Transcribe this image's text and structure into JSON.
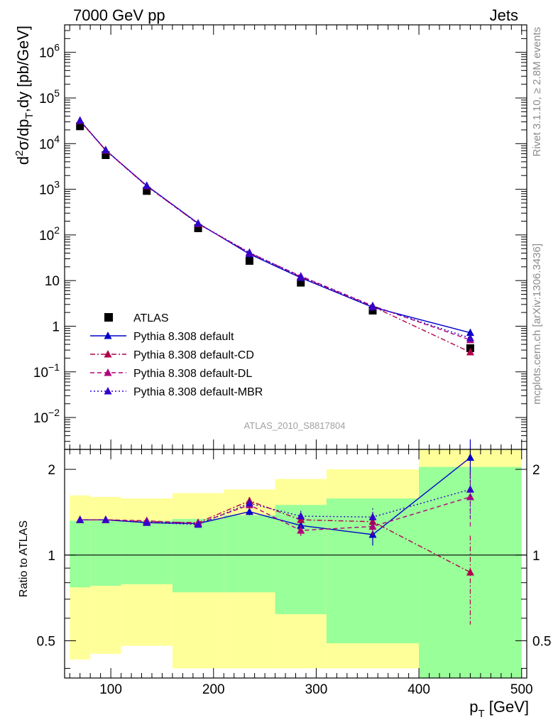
{
  "header": {
    "left": "7000 GeV pp",
    "right": "Jets"
  },
  "side": {
    "rivet": "Rivet 3.1.10, ≥ 2.8M events",
    "mcplots": "mcplots.cern.ch [arXiv:1306.3436]"
  },
  "analysis_id": "ATLAS_2010_S8817804",
  "chart_data": [
    {
      "type": "line",
      "panel": "main",
      "ylabel": "d²σ/dp_T,dy [pb/GeV]",
      "yscale": "log",
      "ylim": [
        0.002,
        4000000
      ],
      "xlim": [
        55,
        505
      ],
      "y_ticks": [
        {
          "v": 0.01,
          "base": "10",
          "exp": "−2"
        },
        {
          "v": 0.1,
          "base": "10",
          "exp": "−1"
        },
        {
          "v": 1,
          "base": "1",
          "exp": ""
        },
        {
          "v": 10,
          "base": "10",
          "exp": ""
        },
        {
          "v": 100,
          "base": "10",
          "exp": "2"
        },
        {
          "v": 1000,
          "base": "10",
          "exp": "3"
        },
        {
          "v": 10000,
          "base": "10",
          "exp": "4"
        },
        {
          "v": 100000,
          "base": "10",
          "exp": "5"
        },
        {
          "v": 1000000,
          "base": "10",
          "exp": "6"
        }
      ],
      "legend_position": "bottom-left",
      "series": [
        {
          "name": "ATLAS",
          "color": "#000000",
          "marker": "square",
          "dash": "none",
          "x": [
            70,
            95,
            135,
            185,
            235,
            285,
            355,
            450
          ],
          "y": [
            24000,
            5600,
            920,
            140,
            27,
            9,
            2.2,
            0.33
          ]
        },
        {
          "name": "Pythia 8.308 default",
          "color": "#0000cc",
          "marker": "triangle",
          "dash": "solid",
          "x": [
            70,
            95,
            135,
            185,
            235,
            285,
            355,
            450
          ],
          "y": [
            32000,
            7200,
            1200,
            180,
            38,
            11.5,
            2.6,
            0.72
          ]
        },
        {
          "name": "Pythia 8.308 default-CD",
          "color": "#b0004a",
          "marker": "triangle",
          "dash": "dashdot",
          "x": [
            70,
            95,
            135,
            185,
            235,
            285,
            355,
            450
          ],
          "y": [
            31500,
            7100,
            1170,
            175,
            41,
            12,
            2.7,
            0.27
          ]
        },
        {
          "name": "Pythia 8.308 default-DL",
          "color": "#b0007a",
          "marker": "triangle",
          "dash": "dashed",
          "x": [
            70,
            95,
            135,
            185,
            235,
            285,
            355,
            450
          ],
          "y": [
            31800,
            7150,
            1180,
            176,
            40,
            12.5,
            2.8,
            0.5
          ]
        },
        {
          "name": "Pythia 8.308 default-MBR",
          "color": "#3300cc",
          "marker": "triangle",
          "dash": "dotted",
          "x": [
            70,
            95,
            135,
            185,
            235,
            285,
            355,
            450
          ],
          "y": [
            32200,
            7250,
            1190,
            178,
            41,
            12.2,
            2.75,
            0.55
          ]
        }
      ]
    },
    {
      "type": "line",
      "panel": "ratio",
      "ylabel": "Ratio to ATLAS",
      "xlabel": "p_T [GeV]",
      "yscale": "log",
      "ylim": [
        0.37,
        2.35
      ],
      "xlim": [
        55,
        505
      ],
      "x_ticks": [
        100,
        200,
        300,
        400,
        500
      ],
      "y_ticks": [
        0.5,
        1,
        2
      ],
      "bands": [
        {
          "x0": 60,
          "x1": 80,
          "yellow": [
            0.43,
            1.62
          ],
          "green": [
            0.77,
            1.32
          ]
        },
        {
          "x0": 80,
          "x1": 110,
          "yellow": [
            0.45,
            1.6
          ],
          "green": [
            0.78,
            1.32
          ]
        },
        {
          "x0": 110,
          "x1": 160,
          "yellow": [
            0.48,
            1.58
          ],
          "green": [
            0.79,
            1.32
          ]
        },
        {
          "x0": 160,
          "x1": 210,
          "yellow": [
            0.4,
            1.65
          ],
          "green": [
            0.74,
            1.34
          ]
        },
        {
          "x0": 210,
          "x1": 260,
          "yellow": [
            0.4,
            1.7
          ],
          "green": [
            0.74,
            1.38
          ]
        },
        {
          "x0": 260,
          "x1": 310,
          "yellow": [
            0.4,
            1.85
          ],
          "green": [
            0.62,
            1.5
          ]
        },
        {
          "x0": 310,
          "x1": 400,
          "yellow": [
            0.4,
            2.0
          ],
          "green": [
            0.49,
            1.58
          ]
        },
        {
          "x0": 400,
          "x1": 500,
          "yellow": [
            0.37,
            2.35
          ],
          "green": [
            0.37,
            2.04
          ]
        }
      ],
      "series": [
        {
          "name": "Pythia 8.308 default",
          "color": "#0000cc",
          "dash": "solid",
          "x": [
            70,
            95,
            135,
            185,
            235,
            285,
            355,
            450
          ],
          "y": [
            1.33,
            1.33,
            1.3,
            1.29,
            1.42,
            1.27,
            1.18,
            2.2
          ],
          "err": [
            0.02,
            0.02,
            0.02,
            0.02,
            0.04,
            0.05,
            0.1,
            0.35
          ]
        },
        {
          "name": "Pythia 8.308 default-CD",
          "color": "#b0004a",
          "dash": "dashdot",
          "x": [
            70,
            95,
            135,
            185,
            235,
            285,
            355,
            450
          ],
          "y": [
            1.33,
            1.33,
            1.31,
            1.3,
            1.55,
            1.33,
            1.31,
            0.87
          ],
          "err": [
            0.02,
            0.02,
            0.02,
            0.02,
            0.05,
            0.06,
            0.1,
            0.3
          ]
        },
        {
          "name": "Pythia 8.308 default-DL",
          "color": "#b0007a",
          "dash": "dashed",
          "x": [
            70,
            95,
            135,
            185,
            235,
            285,
            355,
            450
          ],
          "y": [
            1.33,
            1.33,
            1.32,
            1.29,
            1.5,
            1.22,
            1.26,
            1.6
          ],
          "err": [
            0.02,
            0.02,
            0.02,
            0.02,
            0.05,
            0.06,
            0.1,
            0.35
          ]
        },
        {
          "name": "Pythia 8.308 default-MBR",
          "color": "#3300cc",
          "dash": "dotted",
          "x": [
            70,
            95,
            135,
            185,
            235,
            285,
            355,
            450
          ],
          "y": [
            1.33,
            1.33,
            1.3,
            1.28,
            1.52,
            1.37,
            1.36,
            1.7
          ],
          "err": [
            0.02,
            0.02,
            0.02,
            0.02,
            0.05,
            0.06,
            0.1,
            0.35
          ]
        }
      ]
    }
  ]
}
